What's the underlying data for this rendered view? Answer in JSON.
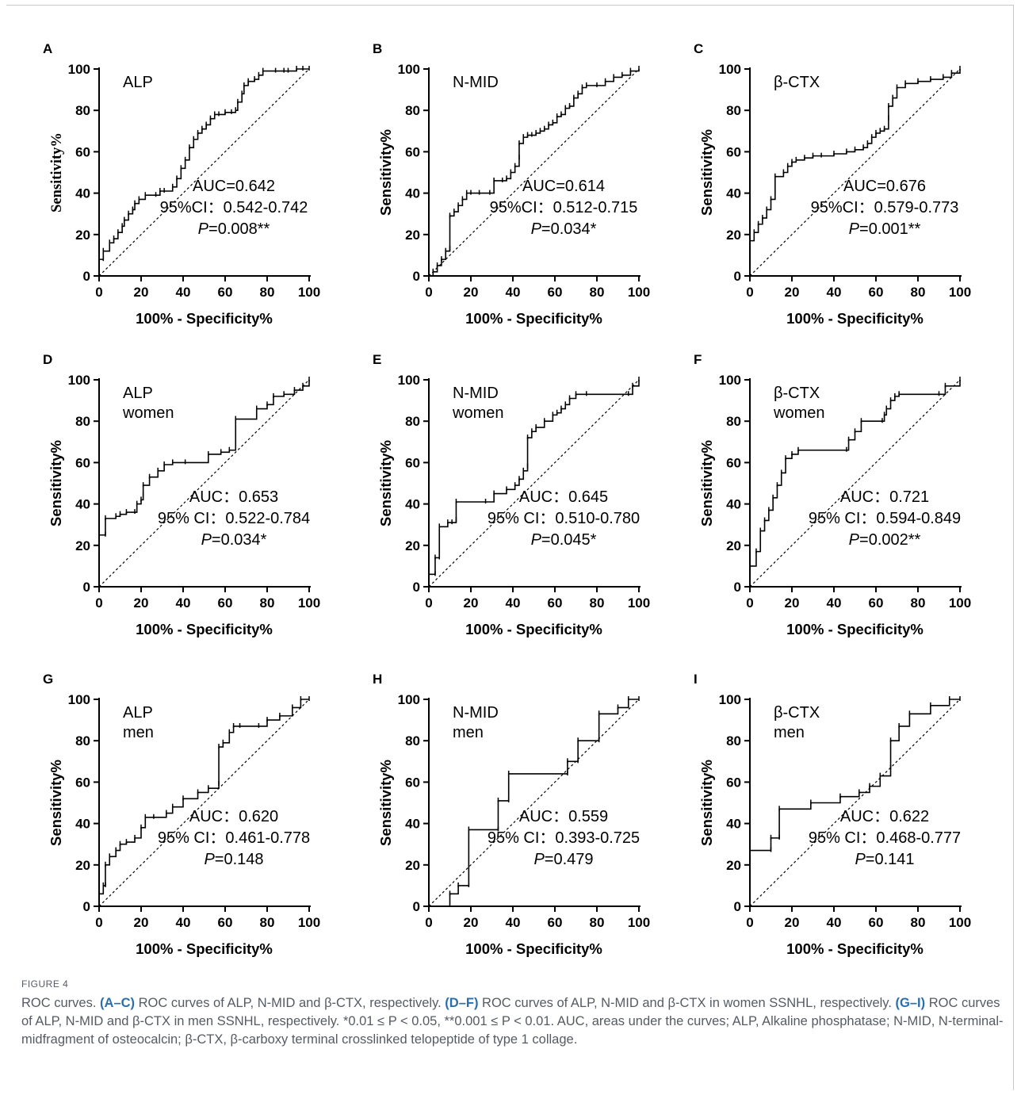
{
  "chart_data": [
    {
      "type": "line",
      "panel": "A",
      "title": "ALP",
      "subtitle": "",
      "xlabel": "100% - Specificity%",
      "ylabel": "Sensitivity%",
      "xlim": [
        0,
        100
      ],
      "ylim": [
        0,
        100
      ],
      "xticks": [
        "0",
        "20",
        "40",
        "60",
        "80",
        "100"
      ],
      "yticks": [
        "0",
        "20",
        "40",
        "60",
        "80",
        "100"
      ],
      "annotations": [
        "AUC=0.642",
        "95%CI：0.542-0.742",
        "P=0.008**"
      ],
      "series": [
        {
          "style": "step",
          "x": [
            0,
            0,
            2,
            2,
            5,
            5,
            7,
            9,
            11,
            12,
            14,
            16,
            17,
            19,
            22,
            27,
            29,
            31,
            35,
            37,
            39,
            41,
            43,
            45,
            47,
            49,
            51,
            53,
            55,
            57,
            60,
            63,
            65,
            66,
            68,
            69,
            71,
            74,
            76,
            78,
            84,
            88,
            90,
            94,
            97,
            100
          ],
          "y": [
            0,
            8,
            8,
            12,
            13,
            16,
            18,
            21,
            24,
            27,
            30,
            32,
            35,
            37,
            39,
            39,
            41,
            41,
            43,
            47,
            52,
            56,
            62,
            66,
            69,
            71,
            73,
            76,
            78,
            78,
            79,
            79,
            80,
            84,
            88,
            92,
            94,
            95,
            97,
            99,
            99,
            99,
            99,
            100,
            100,
            100
          ]
        },
        {
          "style": "reference",
          "x": [
            0,
            100
          ],
          "y": [
            0,
            100
          ]
        }
      ]
    },
    {
      "type": "line",
      "panel": "B",
      "title": "N-MID",
      "subtitle": "",
      "xlabel": "100% - Specificity%",
      "ylabel": "Sensitivity%",
      "xlim": [
        0,
        100
      ],
      "ylim": [
        0,
        100
      ],
      "xticks": [
        "0",
        "20",
        "40",
        "60",
        "80",
        "100"
      ],
      "yticks": [
        "0",
        "20",
        "40",
        "60",
        "80",
        "100"
      ],
      "annotations": [
        "AUC=0.614",
        "95%CI：0.512-0.715",
        "P=0.034*"
      ],
      "series": [
        {
          "style": "step",
          "x": [
            0,
            2,
            4,
            6,
            8,
            10,
            10,
            12,
            14,
            16,
            18,
            20,
            24,
            29,
            31,
            35,
            37,
            39,
            41,
            43,
            43,
            45,
            47,
            49,
            51,
            53,
            55,
            57,
            59,
            61,
            63,
            65,
            67,
            69,
            71,
            73,
            75,
            80,
            84,
            88,
            92,
            96,
            100
          ],
          "y": [
            0,
            2,
            5,
            8,
            12,
            13,
            29,
            31,
            34,
            37,
            40,
            40,
            40,
            40,
            46,
            46,
            47,
            50,
            53,
            57,
            64,
            67,
            68,
            68,
            69,
            70,
            71,
            73,
            74,
            77,
            78,
            81,
            82,
            86,
            88,
            91,
            92,
            92,
            94,
            96,
            97,
            99,
            100
          ]
        },
        {
          "style": "reference",
          "x": [
            0,
            100
          ],
          "y": [
            0,
            100
          ]
        }
      ]
    },
    {
      "type": "line",
      "panel": "C",
      "title": "β-CTX",
      "subtitle": "",
      "xlabel": "100% - Specificity%",
      "ylabel": "Sensitivity%",
      "xlim": [
        0,
        100
      ],
      "ylim": [
        0,
        100
      ],
      "xticks": [
        "0",
        "20",
        "40",
        "60",
        "80",
        "100"
      ],
      "yticks": [
        "0",
        "20",
        "40",
        "60",
        "80",
        "100"
      ],
      "annotations": [
        "AUC=0.676",
        "95%CI：0.579-0.773",
        "P=0.001**"
      ],
      "series": [
        {
          "style": "step",
          "x": [
            0,
            0,
            2,
            4,
            6,
            8,
            10,
            12,
            12,
            16,
            18,
            20,
            22,
            26,
            30,
            34,
            40,
            46,
            50,
            54,
            56,
            58,
            60,
            62,
            64,
            66,
            66,
            68,
            70,
            74,
            80,
            86,
            92,
            96,
            100
          ],
          "y": [
            0,
            17,
            21,
            25,
            28,
            32,
            37,
            40,
            48,
            50,
            53,
            55,
            56,
            57,
            58,
            58,
            59,
            60,
            61,
            62,
            64,
            67,
            69,
            70,
            71,
            76,
            82,
            86,
            91,
            93,
            94,
            95,
            96,
            98,
            100
          ]
        },
        {
          "style": "reference",
          "x": [
            0,
            100
          ],
          "y": [
            0,
            100
          ]
        }
      ]
    },
    {
      "type": "line",
      "panel": "D",
      "title": "ALP",
      "subtitle": "women",
      "xlabel": "100% - Specificity%",
      "ylabel": "Sensitivity%",
      "xlim": [
        0,
        100
      ],
      "ylim": [
        0,
        100
      ],
      "xticks": [
        "0",
        "20",
        "40",
        "60",
        "80",
        "100"
      ],
      "yticks": [
        "0",
        "20",
        "40",
        "60",
        "80",
        "100"
      ],
      "annotations": [
        "AUC：0.653",
        "95% CI：0.522-0.784",
        "P=0.034*"
      ],
      "series": [
        {
          "style": "step",
          "x": [
            0,
            0,
            3,
            3,
            8,
            10,
            13,
            17,
            18,
            20,
            21,
            21,
            24,
            28,
            31,
            35,
            41,
            52,
            58,
            62,
            65,
            65,
            75,
            80,
            83,
            88,
            93,
            97,
            100
          ],
          "y": [
            0,
            25,
            25,
            33,
            34,
            35,
            36,
            36,
            40,
            42,
            44,
            49,
            53,
            56,
            59,
            60,
            60,
            64,
            65,
            66,
            71,
            81,
            86,
            88,
            92,
            93,
            95,
            97,
            100
          ]
        },
        {
          "style": "reference",
          "x": [
            0,
            100
          ],
          "y": [
            0,
            100
          ]
        }
      ]
    },
    {
      "type": "line",
      "panel": "E",
      "title": "N-MID",
      "subtitle": "women",
      "xlabel": "100% - Specificity%",
      "ylabel": "Sensitivity%",
      "xlim": [
        0,
        100
      ],
      "ylim": [
        0,
        100
      ],
      "xticks": [
        "0",
        "20",
        "40",
        "60",
        "80",
        "100"
      ],
      "yticks": [
        "0",
        "20",
        "40",
        "60",
        "80",
        "100"
      ],
      "annotations": [
        "AUC：0.645",
        "95% CI：0.510-0.780",
        "P=0.045*"
      ],
      "series": [
        {
          "style": "step",
          "x": [
            0,
            0,
            3,
            3,
            5,
            5,
            9,
            11,
            13,
            13,
            27,
            31,
            37,
            41,
            43,
            45,
            47,
            47,
            49,
            51,
            55,
            59,
            61,
            63,
            65,
            67,
            70,
            75,
            95,
            97,
            100
          ],
          "y": [
            0,
            6,
            6,
            14,
            14,
            29,
            31,
            31,
            32,
            41,
            41,
            45,
            47,
            49,
            52,
            56,
            58,
            72,
            75,
            77,
            80,
            83,
            84,
            86,
            88,
            91,
            93,
            93,
            93,
            97,
            100
          ]
        },
        {
          "style": "reference",
          "x": [
            0,
            100
          ],
          "y": [
            0,
            100
          ]
        }
      ]
    },
    {
      "type": "line",
      "panel": "F",
      "title": "β-CTX",
      "subtitle": "women",
      "xlabel": "100% - Specificity%",
      "ylabel": "Sensitivity%",
      "xlim": [
        0,
        100
      ],
      "ylim": [
        0,
        100
      ],
      "xticks": [
        "0",
        "20",
        "40",
        "60",
        "80",
        "100"
      ],
      "yticks": [
        "0",
        "20",
        "40",
        "60",
        "80",
        "100"
      ],
      "annotations": [
        "AUC：0.721",
        "95% CI：0.594-0.849",
        "P=0.002**"
      ],
      "series": [
        {
          "style": "step",
          "x": [
            0,
            0,
            3,
            5,
            7,
            9,
            11,
            13,
            15,
            17,
            20,
            23,
            46,
            47,
            50,
            53,
            63,
            64,
            65,
            67,
            69,
            71,
            90,
            93,
            100
          ],
          "y": [
            0,
            10,
            17,
            27,
            32,
            37,
            43,
            49,
            55,
            62,
            64,
            66,
            66,
            71,
            75,
            80,
            80,
            83,
            86,
            90,
            92,
            93,
            93,
            97,
            100
          ]
        },
        {
          "style": "reference",
          "x": [
            0,
            100
          ],
          "y": [
            0,
            100
          ]
        }
      ]
    },
    {
      "type": "line",
      "panel": "G",
      "title": "ALP",
      "subtitle": "men",
      "xlabel": "100% - Specificity%",
      "ylabel": "Sensitivity%",
      "xlim": [
        0,
        100
      ],
      "ylim": [
        0,
        100
      ],
      "xticks": [
        "0",
        "20",
        "40",
        "60",
        "80",
        "100"
      ],
      "yticks": [
        "0",
        "20",
        "40",
        "60",
        "80",
        "100"
      ],
      "annotations": [
        "AUC：0.620",
        "95% CI：0.461-0.778",
        "P=0.148"
      ],
      "series": [
        {
          "style": "step",
          "x": [
            0,
            2,
            3,
            3,
            5,
            8,
            10,
            13,
            17,
            20,
            22,
            26,
            32,
            35,
            40,
            47,
            52,
            57,
            57,
            59,
            62,
            64,
            67,
            76,
            80,
            86,
            92,
            96,
            100
          ],
          "y": [
            6,
            10,
            10,
            20,
            24,
            27,
            30,
            31,
            33,
            38,
            43,
            43,
            45,
            48,
            52,
            55,
            57,
            59,
            77,
            79,
            84,
            87,
            87,
            87,
            90,
            92,
            96,
            100,
            100
          ]
        },
        {
          "style": "reference",
          "x": [
            0,
            100
          ],
          "y": [
            0,
            100
          ]
        }
      ]
    },
    {
      "type": "line",
      "panel": "H",
      "title": "N-MID",
      "subtitle": "men",
      "xlabel": "100% - Specificity%",
      "ylabel": "Sensitivity%",
      "xlim": [
        0,
        100
      ],
      "ylim": [
        0,
        100
      ],
      "xticks": [
        "0",
        "20",
        "40",
        "60",
        "80",
        "100"
      ],
      "yticks": [
        "0",
        "20",
        "40",
        "60",
        "80",
        "100"
      ],
      "annotations": [
        "AUC：0.559",
        "95% CI：0.393-0.725",
        "P=0.479"
      ],
      "series": [
        {
          "style": "step",
          "x": [
            10,
            10,
            14,
            19,
            19,
            33,
            33,
            38,
            38,
            66,
            66,
            71,
            71,
            81,
            81,
            90,
            95,
            100
          ],
          "y": [
            0,
            6,
            10,
            10,
            37,
            37,
            51,
            51,
            64,
            64,
            70,
            70,
            80,
            80,
            93,
            96,
            100,
            100
          ]
        },
        {
          "style": "reference",
          "x": [
            0,
            100
          ],
          "y": [
            0,
            100
          ]
        }
      ]
    },
    {
      "type": "line",
      "panel": "I",
      "title": "β-CTX",
      "subtitle": "men",
      "xlabel": "100% - Specificity%",
      "ylabel": "Sensitivity%",
      "xlim": [
        0,
        100
      ],
      "ylim": [
        0,
        100
      ],
      "xticks": [
        "0",
        "20",
        "40",
        "60",
        "80",
        "100"
      ],
      "yticks": [
        "0",
        "20",
        "40",
        "60",
        "80",
        "100"
      ],
      "annotations": [
        "AUC：0.622",
        "95% CI：0.468-0.777",
        "P=0.141"
      ],
      "series": [
        {
          "style": "step",
          "x": [
            0,
            0,
            10,
            10,
            14,
            14,
            29,
            43,
            52,
            57,
            62,
            67,
            67,
            71,
            76,
            86,
            95,
            100
          ],
          "y": [
            0,
            27,
            27,
            33,
            33,
            47,
            50,
            53,
            55,
            58,
            63,
            67,
            80,
            87,
            93,
            97,
            100,
            100
          ]
        },
        {
          "style": "reference",
          "x": [
            0,
            100
          ],
          "y": [
            0,
            100
          ]
        }
      ]
    }
  ],
  "caption": {
    "figure_label": "FIGURE 4",
    "segments": [
      {
        "bold": false,
        "text": "ROC curves. "
      },
      {
        "bold": true,
        "text": "(A–C)"
      },
      {
        "bold": false,
        "text": " ROC curves of ALP, N-MID and β-CTX, respectively. "
      },
      {
        "bold": true,
        "text": "(D–F)"
      },
      {
        "bold": false,
        "text": " ROC curves of ALP, N-MID and β-CTX in women SSNHL, respectively. "
      },
      {
        "bold": true,
        "text": "(G–I)"
      },
      {
        "bold": false,
        "text": " ROC curves of ALP, N-MID and β-CTX in men SSNHL, respectively. *0.01 ≤ P < 0.05, **0.001 ≤ P < 0.01. AUC, areas under the curves; ALP, Alkaline phosphatase; N-MID, N-terminal-midfragment of osteocalcin; β-CTX, β-carboxy terminal crosslinked telopeptide of type 1 collage."
      }
    ]
  }
}
